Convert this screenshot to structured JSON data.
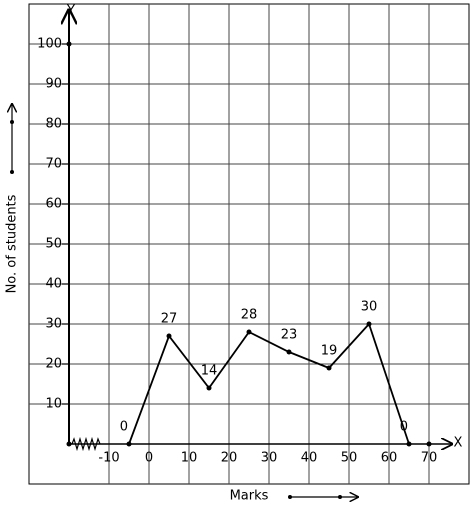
{
  "chart_data": {
    "type": "line",
    "x": [
      -5,
      5,
      15,
      25,
      35,
      45,
      55,
      65
    ],
    "values": [
      0,
      27,
      14,
      28,
      23,
      19,
      30,
      0
    ],
    "color": "#000000",
    "xlim": [
      -30,
      80
    ],
    "ylim": [
      -10,
      110
    ],
    "xticks": [
      -10,
      0,
      10,
      20,
      30,
      40,
      50,
      60,
      70
    ],
    "yticks": [
      10,
      20,
      30,
      40,
      50,
      60,
      70,
      80,
      90,
      100
    ],
    "grid": true,
    "xlabel": "Marks",
    "ylabel": "No. of students",
    "x_axis_name": "X",
    "y_axis_name": "Y"
  }
}
